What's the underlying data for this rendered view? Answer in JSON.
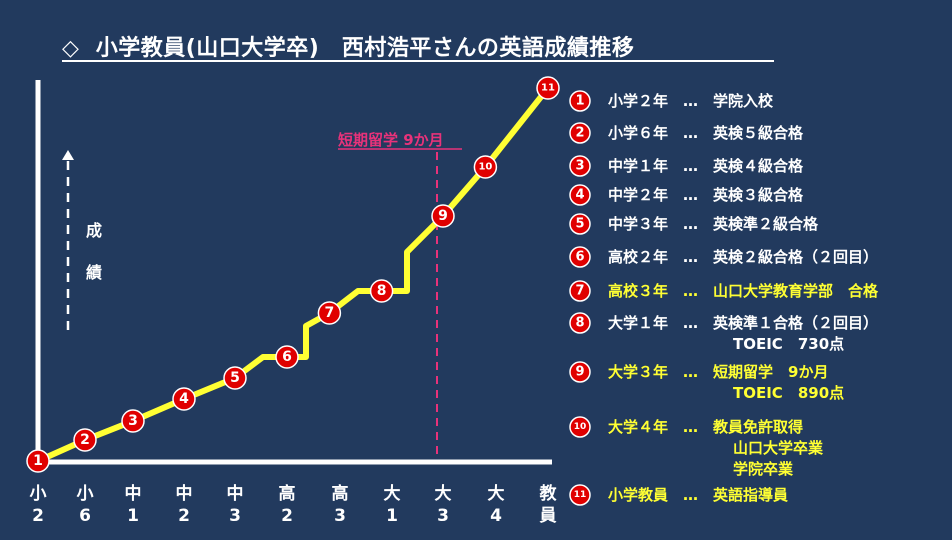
{
  "title": "◇  小学教員(山口大学卒)　西村浩平さんの英語成績推移",
  "y_axis_label": [
    "成",
    "績"
  ],
  "annotation": "短期留学 9か月",
  "colors": {
    "background": "#223a5e",
    "path": "#ffff33",
    "marker": "#e00000",
    "highlight_text": "#ffff33",
    "normal_text": "#ffffff",
    "annotation": "#e8327a"
  },
  "chart_data": {
    "type": "line",
    "x_categories": [
      [
        "小",
        "2"
      ],
      [
        "小",
        "6"
      ],
      [
        "中",
        "1"
      ],
      [
        "中",
        "2"
      ],
      [
        "中",
        "3"
      ],
      [
        "高",
        "2"
      ],
      [
        "高",
        "3"
      ],
      [
        "大",
        "1"
      ],
      [
        "大",
        "3"
      ],
      [
        "大",
        "4"
      ],
      [
        "教",
        "員"
      ]
    ],
    "milestones": [
      {
        "label": "1",
        "x_index": 0,
        "level": 0
      },
      {
        "label": "2",
        "x_index": 1,
        "level": 1
      },
      {
        "label": "3",
        "x_index": 2,
        "level": 2
      },
      {
        "label": "4",
        "x_index": 3,
        "level": 3
      },
      {
        "label": "5",
        "x_index": 4,
        "level": 4
      },
      {
        "label": "6",
        "x_index": 5,
        "level": 5
      },
      {
        "label": "7",
        "x_index": 5.8,
        "level": 6
      },
      {
        "label": "8",
        "x_index": 6.8,
        "level": 7
      },
      {
        "label": "9",
        "x_index": 8,
        "level": 8
      },
      {
        "label": "10",
        "x_index": 8.8,
        "level": 9
      },
      {
        "label": "11",
        "x_index": 10,
        "level": 10
      }
    ]
  },
  "legend": [
    {
      "num": "1",
      "lines": [
        "小学２年　…　学院入校"
      ],
      "highlight": false
    },
    {
      "num": "2",
      "lines": [
        "小学６年　…　英検５級合格"
      ],
      "highlight": false
    },
    {
      "num": "3",
      "lines": [
        "中学１年　…　英検４級合格"
      ],
      "highlight": false
    },
    {
      "num": "4",
      "lines": [
        "中学２年　…　英検３級合格"
      ],
      "highlight": false
    },
    {
      "num": "5",
      "lines": [
        "中学３年　…　英検準２級合格"
      ],
      "highlight": false
    },
    {
      "num": "6",
      "lines": [
        "高校２年　…　英検２級合格（２回目）"
      ],
      "highlight": false
    },
    {
      "num": "7",
      "lines": [
        "高校３年　…　山口大学教育学部　合格"
      ],
      "highlight": true
    },
    {
      "num": "8",
      "lines": [
        "大学１年　…　英検準１合格（２回目）",
        "TOEIC　730点"
      ],
      "highlight": false
    },
    {
      "num": "9",
      "lines": [
        "大学３年　…　短期留学　9か月",
        "TOEIC　890点"
      ],
      "highlight": true
    },
    {
      "num": "10",
      "lines": [
        "大学４年　…　教員免許取得",
        "山口大学卒業",
        "学院卒業"
      ],
      "highlight": true
    },
    {
      "num": "11",
      "lines": [
        "小学教員　…　英語指導員"
      ],
      "highlight": true
    }
  ]
}
